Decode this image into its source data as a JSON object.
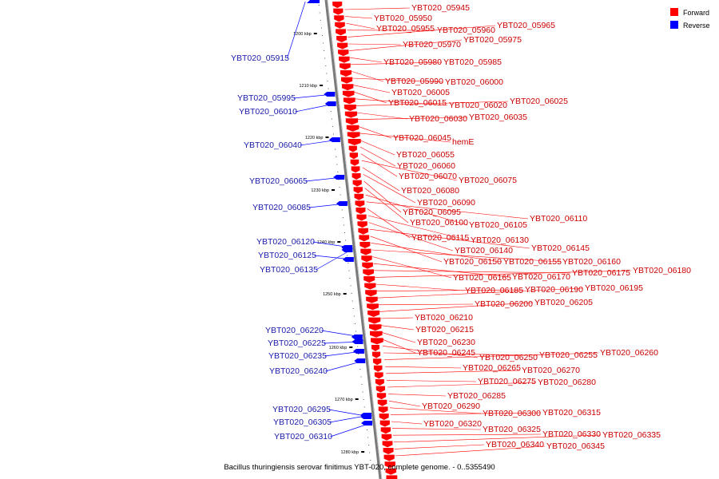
{
  "colors": {
    "forward": "#ff0000",
    "reverse": "#0000ff",
    "label_forward": "#cc0000",
    "label_reverse": "#1a1aaa",
    "axis": "#808080"
  },
  "legend": {
    "forward": "Forward",
    "reverse": "Reverse"
  },
  "caption": "Bacillus thuringiensis serovar finitimus YBT-020, complete genome. - 0..5355490",
  "ruler": [
    "1200 kbp",
    "1210 kbp",
    "1220 kbp",
    "1230 kbp",
    "1240 kbp",
    "1250 kbp",
    "1260 kbp",
    "1270 kbp",
    "1280 kbp"
  ],
  "forward_genes": [
    "YBT020_05945",
    "YBT020_05950",
    "YBT020_05955",
    "YBT020_05960",
    "YBT020_05965",
    "YBT020_05970",
    "YBT020_05975",
    "YBT020_05980",
    "YBT020_05985",
    "YBT020_05990",
    "YBT020_06000",
    "YBT020_06005",
    "YBT020_06015",
    "YBT020_06020",
    "YBT020_06025",
    "YBT020_06030",
    "YBT020_06035",
    "YBT020_06045",
    "hemE",
    "YBT020_06055",
    "YBT020_06060",
    "YBT020_06070",
    "YBT020_06075",
    "YBT020_06080",
    "YBT020_06090",
    "YBT020_06095",
    "YBT020_06100",
    "YBT020_06105",
    "YBT020_06110",
    "YBT020_06115",
    "YBT020_06130",
    "YBT020_06140",
    "YBT020_06145",
    "YBT020_06150",
    "YBT020_06155",
    "YBT020_06160",
    "YBT020_06165",
    "YBT020_06170",
    "YBT020_06175",
    "YBT020_06180",
    "YBT020_06185",
    "YBT020_06190",
    "YBT020_06195",
    "YBT020_06200",
    "YBT020_06205",
    "YBT020_06210",
    "YBT020_06215",
    "YBT020_06230",
    "YBT020_06245",
    "YBT020_06250",
    "YBT020_06255",
    "YBT020_06260",
    "YBT020_06265",
    "YBT020_06270",
    "YBT020_06275",
    "YBT020_06280",
    "YBT020_06285",
    "YBT020_06290",
    "YBT020_06300",
    "YBT020_06315",
    "YBT020_06320",
    "YBT020_06325",
    "YBT020_06330",
    "YBT020_06335",
    "YBT020_06340",
    "YBT020_06345"
  ],
  "reverse_genes": [
    "YBT020_05915",
    "YBT020_05995",
    "YBT020_06010",
    "YBT020_06040",
    "YBT020_06065",
    "YBT020_06085",
    "YBT020_06120",
    "YBT020_06125",
    "YBT020_06135",
    "YBT020_06220",
    "YBT020_06225",
    "YBT020_06235",
    "YBT020_06240",
    "YBT020_06295",
    "YBT020_06305",
    "YBT020_06310"
  ]
}
